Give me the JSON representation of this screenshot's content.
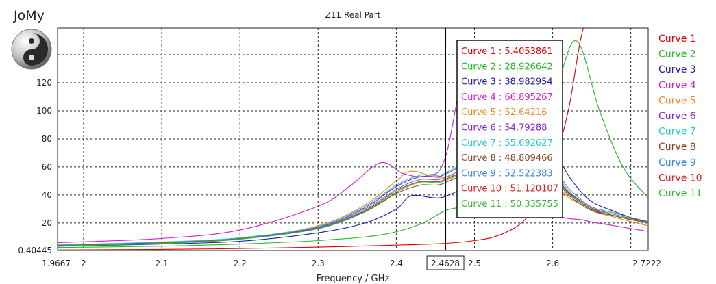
{
  "app": {
    "brand": "JoMy",
    "logo_icon": "yin-yang-icon"
  },
  "chart_data": {
    "type": "line",
    "title": "Z11 Real Part",
    "xlabel": "Frequency / GHz",
    "ylabel": "",
    "xlim": [
      1.9667,
      2.7222
    ],
    "ylim": [
      0.40445,
      150
    ],
    "grid": true,
    "legend_position": "right",
    "x_ticks": [
      "1.9667",
      "2",
      "2.1",
      "2.2",
      "2.3",
      "2.4",
      "2.5",
      "2.6",
      "2.7222"
    ],
    "y_ticks": [
      "0.40445",
      "20",
      "40",
      "60",
      "80",
      "100",
      "120"
    ],
    "cursor": {
      "x": 2.4628,
      "label": "2.4628"
    },
    "series": [
      {
        "name": "Curve 1",
        "color": "#dd0000",
        "cursor_readout": "Curve 1 : 5.4053861",
        "x": [
          1.9667,
          2.1,
          2.2,
          2.3,
          2.4,
          2.46,
          2.5,
          2.53,
          2.56,
          2.58,
          2.6,
          2.62,
          2.64,
          2.66,
          2.68,
          2.7,
          2.7222
        ],
        "y": [
          0.8,
          1.2,
          1.8,
          2.8,
          4.2,
          5.4,
          7.5,
          11,
          20,
          35,
          60,
          100,
          160,
          160,
          160,
          160,
          160
        ]
      },
      {
        "name": "Curve 2",
        "color": "#22bb22",
        "cursor_readout": "Curve 2 : 28.926642",
        "x": [
          1.9667,
          2.1,
          2.2,
          2.3,
          2.38,
          2.43,
          2.4628,
          2.5,
          2.55,
          2.6,
          2.63,
          2.66,
          2.69,
          2.7222
        ],
        "y": [
          2.5,
          3.5,
          5,
          7.5,
          11.5,
          19,
          28.9,
          35,
          60,
          110,
          150,
          100,
          60,
          38
        ]
      },
      {
        "name": "Curve 3",
        "color": "#1a1aaa",
        "cursor_readout": "Curve 3 : 38.982954",
        "x": [
          1.9667,
          2.1,
          2.2,
          2.3,
          2.36,
          2.4,
          2.42,
          2.4628,
          2.5,
          2.55,
          2.6,
          2.64,
          2.68,
          2.7222
        ],
        "y": [
          3.5,
          5,
          7,
          13,
          20,
          30,
          39.5,
          39,
          60,
          150,
          75,
          40,
          28,
          20
        ]
      },
      {
        "name": "Curve 4",
        "color": "#cc22cc",
        "cursor_readout": "Curve 4 : 66.895267",
        "x": [
          1.9667,
          2.1,
          2.2,
          2.3,
          2.34,
          2.38,
          2.41,
          2.44,
          2.4628,
          2.5,
          2.55,
          2.6,
          2.64,
          2.68,
          2.7222
        ],
        "y": [
          6,
          9,
          15,
          32,
          46,
          63,
          55,
          54,
          66.9,
          150,
          80,
          30,
          22,
          18,
          14
        ]
      },
      {
        "name": "Curve 5",
        "color": "#ee8822",
        "cursor_readout": "Curve 5 : 52.64216",
        "x": [
          1.9667,
          2.1,
          2.2,
          2.3,
          2.36,
          2.4,
          2.42,
          2.4628,
          2.5,
          2.55,
          2.6,
          2.64,
          2.68,
          2.7222
        ],
        "y": [
          4,
          6,
          9,
          18,
          33,
          50,
          57,
          52.6,
          70,
          150,
          55,
          32,
          24,
          18
        ]
      },
      {
        "name": "Curve 6",
        "color": "#8822cc",
        "cursor_readout": "Curve 6 : 54.79288",
        "x": [
          1.9667,
          2.1,
          2.2,
          2.3,
          2.36,
          2.4,
          2.43,
          2.4628,
          2.5,
          2.55,
          2.6,
          2.64,
          2.68,
          2.7222
        ],
        "y": [
          4,
          6,
          9,
          17,
          31,
          46,
          53,
          54.8,
          75,
          150,
          60,
          33,
          25,
          20
        ]
      },
      {
        "name": "Curve 7",
        "color": "#22cccc",
        "cursor_readout": "Curve 7 : 55.692627",
        "x": [
          1.9667,
          2.1,
          2.2,
          2.3,
          2.36,
          2.4,
          2.43,
          2.4628,
          2.5,
          2.55,
          2.6,
          2.64,
          2.68,
          2.7222
        ],
        "y": [
          4.5,
          6.5,
          9.5,
          17.5,
          32,
          47,
          54,
          55.7,
          76,
          150,
          62,
          34,
          26,
          21
        ]
      },
      {
        "name": "Curve 8",
        "color": "#884422",
        "cursor_readout": "Curve 8 : 48.809466",
        "x": [
          1.9667,
          2.1,
          2.2,
          2.3,
          2.36,
          2.4,
          2.43,
          2.4628,
          2.5,
          2.55,
          2.6,
          2.64,
          2.68,
          2.7222
        ],
        "y": [
          3.5,
          5.5,
          8.5,
          16,
          28,
          41,
          47,
          48.8,
          68,
          150,
          58,
          32,
          25,
          20
        ]
      },
      {
        "name": "Curve 9",
        "color": "#3388dd",
        "cursor_readout": "Curve 9 : 52.522383",
        "x": [
          1.9667,
          2.1,
          2.2,
          2.3,
          2.36,
          2.4,
          2.43,
          2.4628,
          2.5,
          2.55,
          2.6,
          2.64,
          2.68,
          2.7222
        ],
        "y": [
          4,
          6,
          9,
          16.5,
          30,
          44,
          51,
          52.5,
          72,
          150,
          64,
          35,
          27,
          21
        ]
      },
      {
        "name": "Curve 10",
        "color": "#cc2222",
        "cursor_readout": "Curve 10 : 51.120107",
        "x": [
          1.9667,
          2.1,
          2.2,
          2.3,
          2.36,
          2.4,
          2.43,
          2.4628,
          2.5,
          2.55,
          2.6,
          2.64,
          2.68,
          2.7222
        ],
        "y": [
          3.8,
          5.8,
          8.8,
          16.2,
          29,
          43,
          49.5,
          51.1,
          70,
          150,
          60,
          34,
          26,
          21
        ]
      },
      {
        "name": "Curve 11",
        "color": "#33bb33",
        "cursor_readout": "Curve 11 : 50.335755",
        "x": [
          1.9667,
          2.1,
          2.2,
          2.3,
          2.36,
          2.4,
          2.43,
          2.4628,
          2.5,
          2.55,
          2.6,
          2.64,
          2.68,
          2.7222
        ],
        "y": [
          3.6,
          5.6,
          8.6,
          16,
          28.5,
          42,
          49,
          50.3,
          69,
          150,
          59,
          33,
          26,
          20
        ]
      }
    ]
  }
}
